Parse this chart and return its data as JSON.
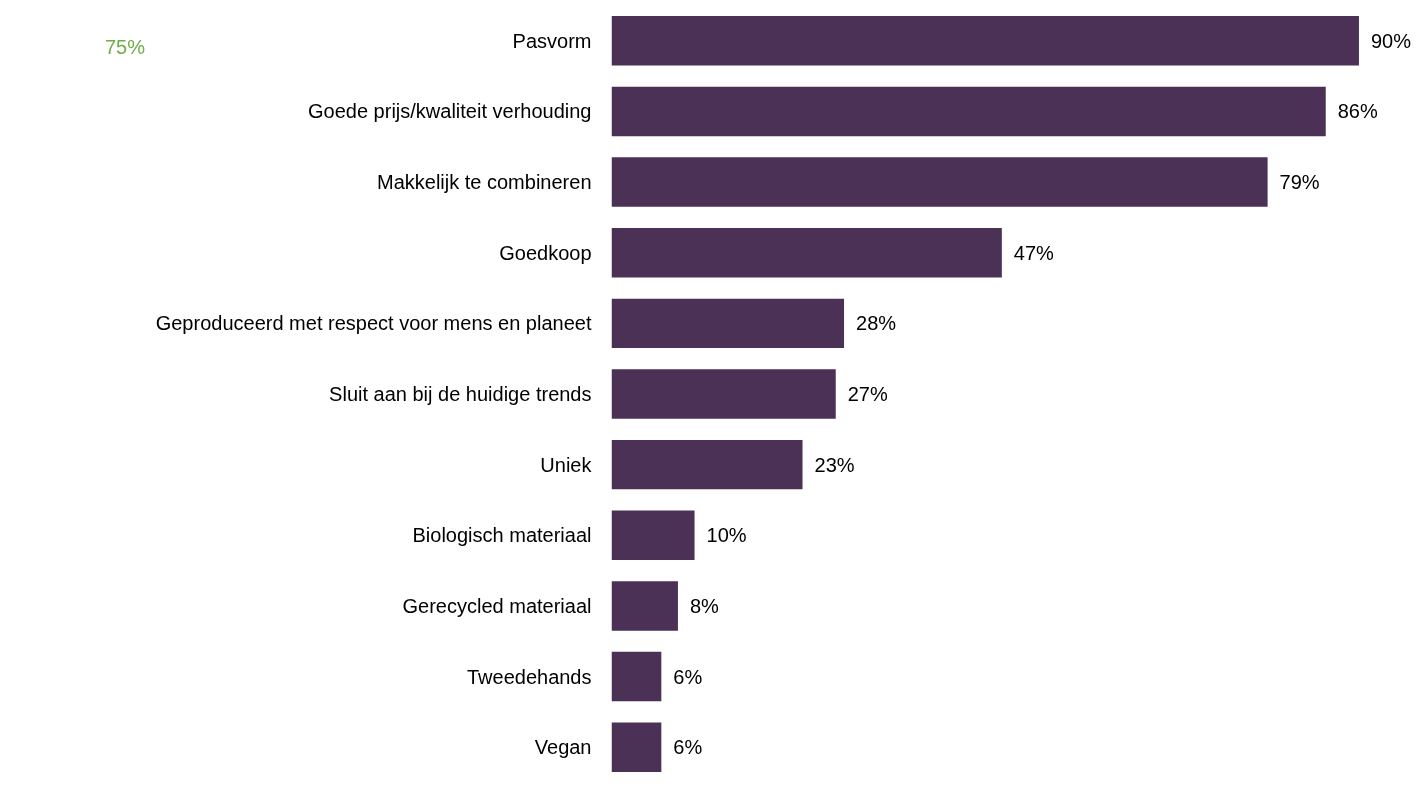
{
  "chart_data": {
    "type": "bar",
    "orientation": "horizontal",
    "categories": [
      "Pasvorm",
      "Goede prijs/kwaliteit verhouding",
      "Makkelijk te combineren",
      "Goedkoop",
      "Geproduceerd met respect voor mens en planeet",
      "Sluit aan bij de huidige trends",
      "Uniek",
      "Biologisch materiaal",
      "Gerecycled materiaal",
      "Tweedehands",
      "Vegan"
    ],
    "values": [
      90,
      86,
      79,
      47,
      28,
      27,
      23,
      10,
      8,
      6,
      6
    ],
    "value_labels": [
      "90%",
      "86%",
      "79%",
      "47%",
      "28%",
      "27%",
      "23%",
      "10%",
      "8%",
      "6%",
      "6%"
    ],
    "color": "#4b3156",
    "tick_labels": "y",
    "annotations": [
      "75%"
    ]
  }
}
